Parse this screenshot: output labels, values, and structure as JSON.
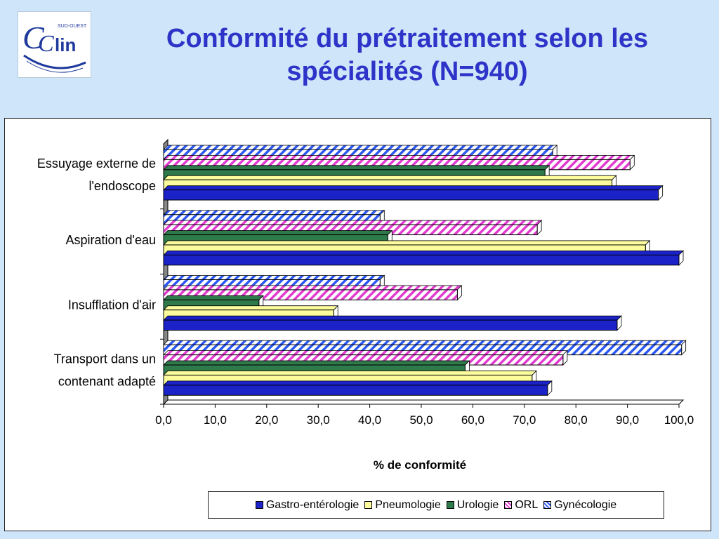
{
  "header": {
    "logo_text": "Cclin",
    "logo_subtext": "SUD-OUEST",
    "title_line1": "Conformité du prétraitement selon les",
    "title_line2": "spécialités (N=940)"
  },
  "colors": {
    "background": "#cfe6fa",
    "title": "#2f34c9",
    "series": [
      "#1a22c8",
      "#fcfc9c",
      "#2e7a4a",
      "#e23ad0",
      "#2a57f2"
    ]
  },
  "chart_data": {
    "type": "bar",
    "orientation": "horizontal",
    "categories": [
      "Essuyage externe de l'endoscope",
      "Aspiration d'eau",
      "Insufflation d'air",
      "Transport dans un contenant adapté"
    ],
    "category_label_lines": [
      [
        "Essuyage externe de",
        "l'endoscope"
      ],
      [
        "Aspiration d'eau"
      ],
      [
        "Insufflation d'air"
      ],
      [
        "Transport dans un",
        "contenant adapté"
      ]
    ],
    "series": [
      {
        "name": "Gastro-entérologie",
        "values": [
          96,
          100,
          88,
          74.5
        ],
        "pattern": "solid"
      },
      {
        "name": "Pneumologie",
        "values": [
          87,
          93.5,
          33,
          71.5
        ],
        "pattern": "solid"
      },
      {
        "name": "Urologie",
        "values": [
          74,
          43.5,
          18.5,
          58.5
        ],
        "pattern": "solid"
      },
      {
        "name": "ORL",
        "values": [
          90.5,
          72.5,
          57,
          77.5
        ],
        "pattern": "hatch"
      },
      {
        "name": "Gynécologie",
        "values": [
          75.5,
          42,
          42,
          100.5
        ],
        "pattern": "hatch"
      }
    ],
    "xlabel": "% de conformité",
    "xlim": [
      0,
      100
    ],
    "xticks": [
      "0,0",
      "10,0",
      "20,0",
      "30,0",
      "40,0",
      "50,0",
      "60,0",
      "70,0",
      "80,0",
      "90,0",
      "100,0"
    ],
    "legend_position": "bottom",
    "grid": false
  }
}
